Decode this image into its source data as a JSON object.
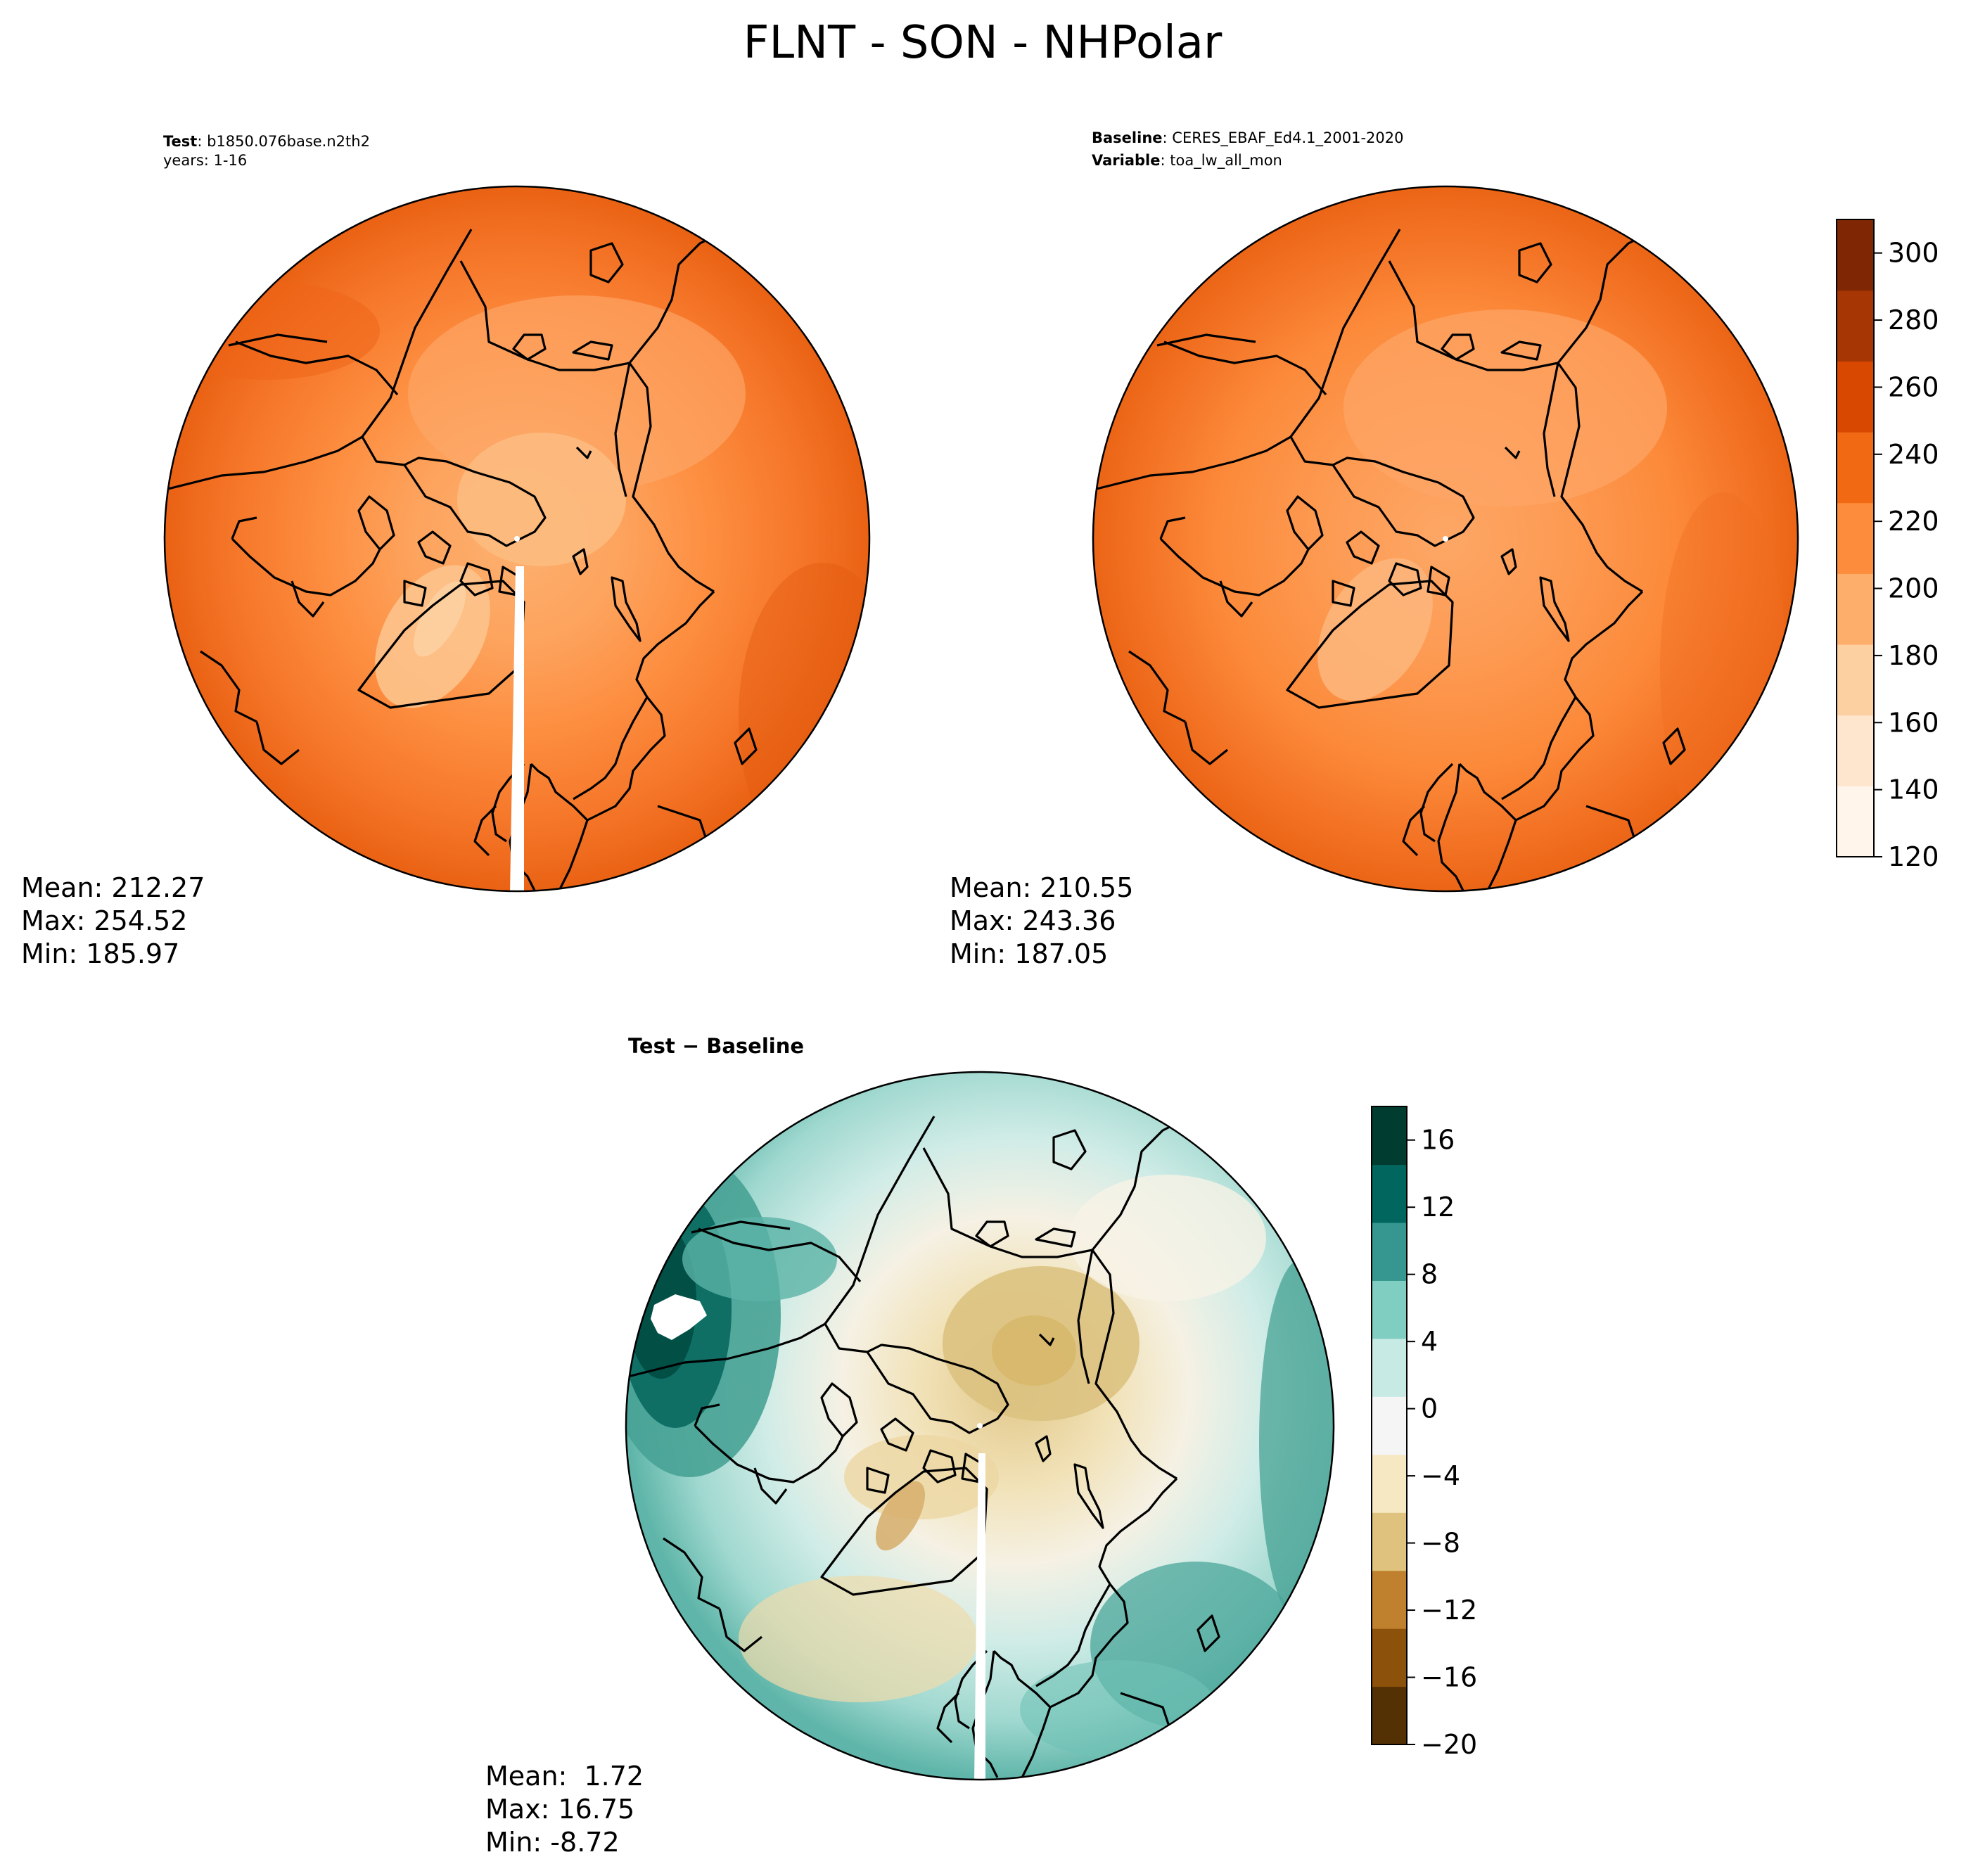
{
  "figure": {
    "title": "FLNT - SON - NHPolar"
  },
  "panels": {
    "test": {
      "header_label": "Test",
      "header_value": "b1850.076base.n2th2",
      "header_line2": "years: 1-16",
      "mean": "Mean: 212.27",
      "max": "Max: 254.52",
      "min": "Min: 185.97"
    },
    "baseline": {
      "header_label": "Baseline",
      "header_value": "CERES_EBAF_Ed4.1_2001-2020",
      "header_label2": "Variable",
      "header_value2": "toa_lw_all_mon",
      "mean": "Mean: 210.55",
      "max": "Max: 243.36",
      "min": "Min: 187.05"
    },
    "diff": {
      "title": "Test − Baseline",
      "mean": "Mean:  1.72",
      "max": "Max: 16.75",
      "min": "Min: -8.72"
    }
  },
  "colorbars": {
    "main": {
      "min": 120,
      "max": 310,
      "ticks": [
        "120",
        "140",
        "160",
        "180",
        "200",
        "220",
        "240",
        "260",
        "280",
        "300"
      ],
      "colors": [
        "#fff5eb",
        "#fee6ce",
        "#fdd0a2",
        "#fdae6b",
        "#fd8d3c",
        "#f16913",
        "#d94801",
        "#a63603",
        "#7f2704"
      ]
    },
    "diff": {
      "min": -20,
      "max": 18,
      "ticks": [
        "−20",
        "−16",
        "−12",
        "−8",
        "−4",
        "0",
        "4",
        "8",
        "12",
        "16"
      ],
      "colors": [
        "#543005",
        "#8c510a",
        "#bf812d",
        "#dfc27d",
        "#f6e8c3",
        "#f5f5f5",
        "#c7eae5",
        "#80cdc1",
        "#35978f",
        "#01665e",
        "#003c30"
      ]
    }
  }
}
